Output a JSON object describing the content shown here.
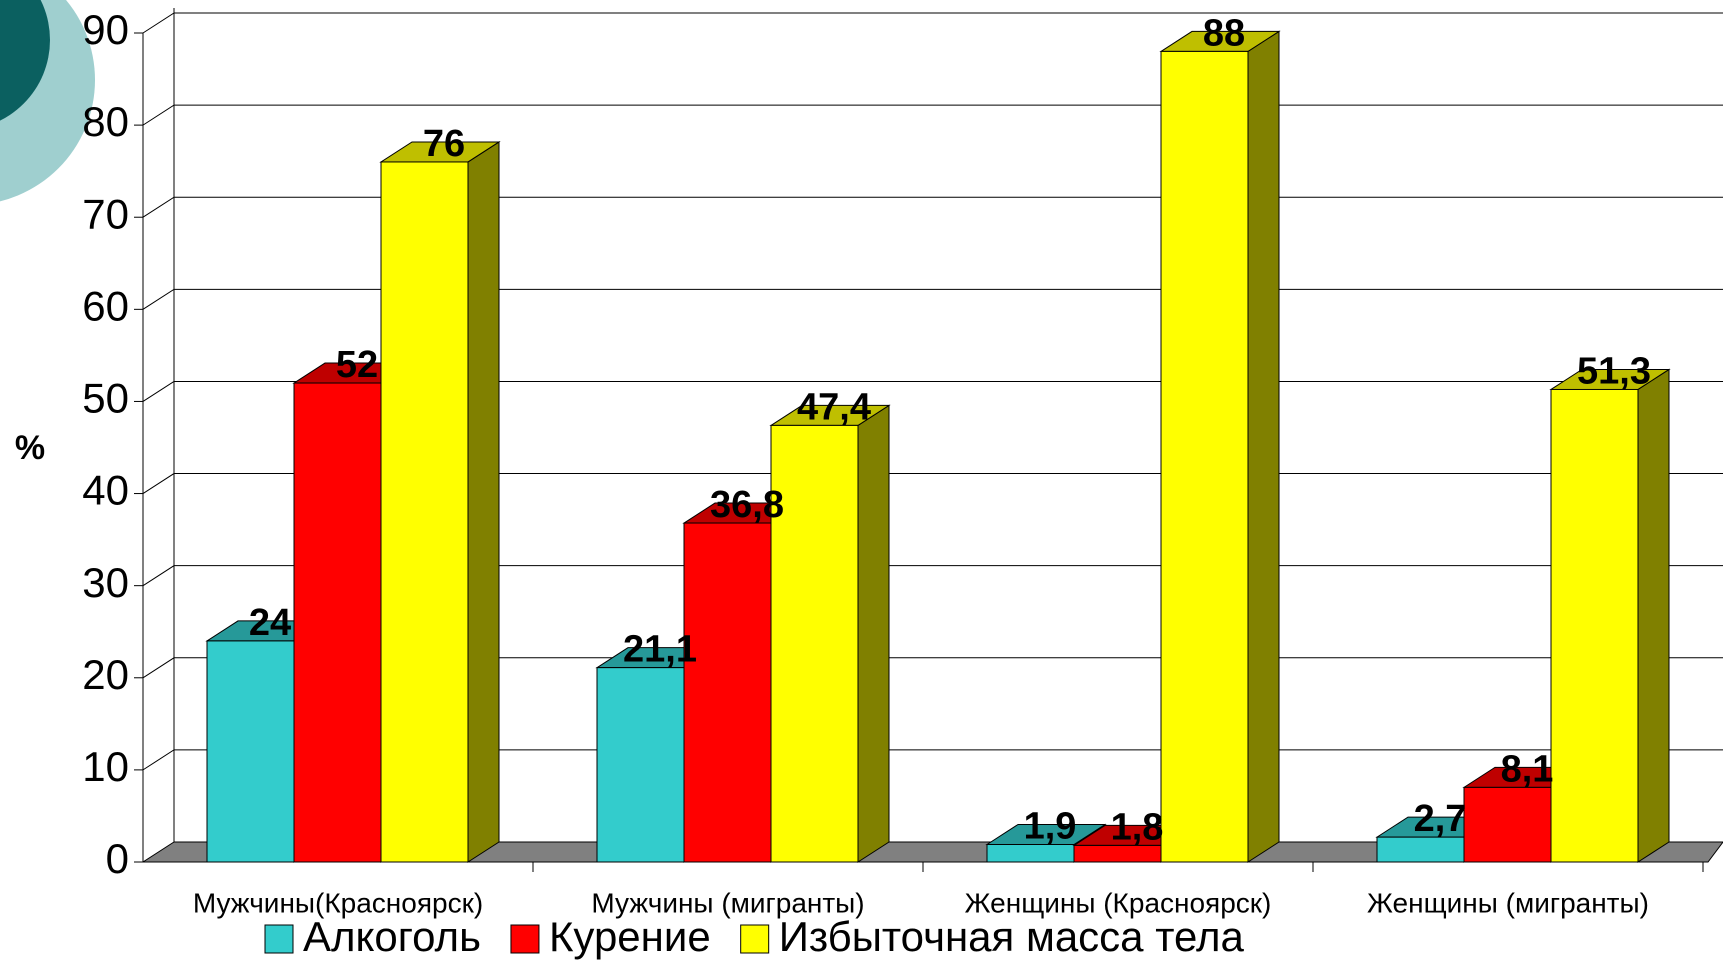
{
  "chart_data": {
    "type": "bar3d",
    "y_label": "%",
    "categories": [
      "Мужчины(Красноярск)",
      "Мужчины (мигранты)",
      "Женщины (Красноярск)",
      "Женщины (мигранты)"
    ],
    "series": [
      {
        "name": "Алкоголь",
        "color": "#33cccc",
        "values": [
          24,
          21.1,
          1.9,
          2.7
        ],
        "value_labels": [
          "24",
          "21,1",
          "1,9",
          "2,7"
        ]
      },
      {
        "name": "Курение",
        "color": "#ff0000",
        "values": [
          52,
          36.8,
          1.8,
          8.1
        ],
        "value_labels": [
          "52",
          "36,8",
          "1,8",
          "8,1"
        ]
      },
      {
        "name": "Избыточная масса тела",
        "color": "#ffff00",
        "values": [
          76,
          47.4,
          88,
          51.3
        ],
        "value_labels": [
          "76",
          "47,4",
          "88",
          "51,3"
        ]
      }
    ],
    "ylim": [
      0,
      90
    ],
    "yticks": [
      0,
      10,
      20,
      30,
      40,
      50,
      60,
      70,
      80,
      90
    ],
    "grid": true
  }
}
